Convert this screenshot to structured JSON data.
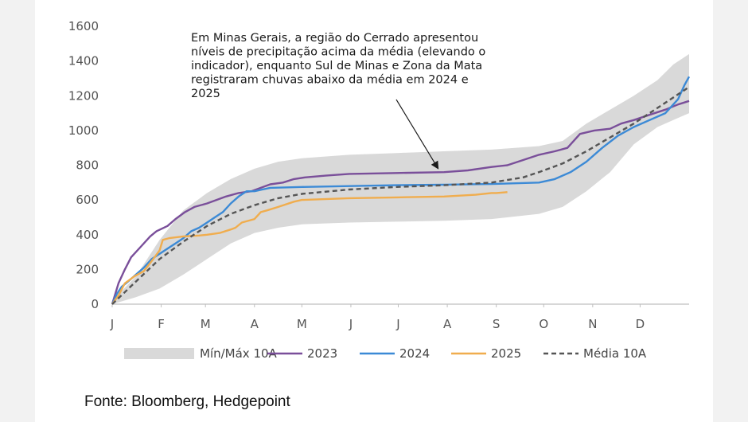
{
  "chart_data": {
    "type": "line",
    "title": "",
    "xlabel": "",
    "ylabel": "",
    "ylim": [
      0,
      1600
    ],
    "xlim": [
      0,
      365
    ],
    "y_ticks": [
      0,
      200,
      400,
      600,
      800,
      1000,
      1200,
      1400,
      1600
    ],
    "x_tick_labels": [
      "J",
      "F",
      "M",
      "A",
      "M",
      "J",
      "J",
      "A",
      "S",
      "O",
      "N",
      "D"
    ],
    "x_tick_days": [
      0,
      31,
      59,
      90,
      120,
      151,
      181,
      212,
      243,
      273,
      304,
      334
    ],
    "grid": false,
    "legend_position": "bottom",
    "band": {
      "name": "Mín/Máx 10A",
      "color": "#d9d9d9",
      "x": [
        0,
        15,
        30,
        45,
        60,
        75,
        90,
        105,
        120,
        150,
        180,
        210,
        240,
        270,
        285,
        300,
        315,
        330,
        345,
        355,
        365
      ],
      "min": [
        0,
        40,
        90,
        170,
        260,
        350,
        410,
        440,
        460,
        470,
        475,
        480,
        490,
        520,
        560,
        650,
        760,
        920,
        1020,
        1060,
        1100
      ],
      "max": [
        20,
        160,
        370,
        540,
        640,
        720,
        780,
        820,
        840,
        860,
        870,
        880,
        890,
        910,
        940,
        1040,
        1120,
        1200,
        1290,
        1380,
        1440
      ]
    },
    "series": [
      {
        "name": "2023",
        "color": "#7a4f9a",
        "dash": "",
        "x": [
          0,
          4,
          8,
          12,
          18,
          24,
          28,
          35,
          40,
          46,
          52,
          60,
          66,
          72,
          80,
          88,
          94,
          100,
          108,
          115,
          122,
          135,
          150,
          180,
          210,
          225,
          240,
          250,
          260,
          270,
          280,
          288,
          296,
          305,
          315,
          322,
          330,
          340,
          350,
          358,
          365
        ],
        "y": [
          0,
          120,
          200,
          270,
          330,
          390,
          420,
          450,
          490,
          530,
          560,
          580,
          600,
          620,
          640,
          650,
          670,
          690,
          700,
          720,
          730,
          740,
          750,
          755,
          760,
          770,
          790,
          800,
          830,
          860,
          880,
          900,
          980,
          1000,
          1010,
          1040,
          1060,
          1090,
          1120,
          1150,
          1170
        ]
      },
      {
        "name": "2024",
        "color": "#3c8ad6",
        "dash": "",
        "x": [
          0,
          3,
          6,
          10,
          15,
          20,
          25,
          30,
          35,
          40,
          45,
          50,
          55,
          60,
          65,
          70,
          75,
          80,
          85,
          90,
          95,
          100,
          120,
          150,
          180,
          210,
          240,
          270,
          280,
          290,
          300,
          310,
          320,
          330,
          340,
          350,
          358,
          362,
          365
        ],
        "y": [
          0,
          60,
          100,
          130,
          170,
          210,
          260,
          290,
          320,
          350,
          380,
          420,
          440,
          470,
          500,
          530,
          580,
          620,
          650,
          650,
          660,
          670,
          675,
          680,
          685,
          688,
          692,
          700,
          720,
          760,
          820,
          900,
          970,
          1020,
          1060,
          1100,
          1180,
          1260,
          1310
        ]
      },
      {
        "name": "2025",
        "color": "#f0ad4e",
        "dash": "",
        "x": [
          0,
          4,
          8,
          14,
          20,
          26,
          30,
          32,
          36,
          45,
          55,
          60,
          68,
          75,
          78,
          82,
          90,
          94,
          98,
          105,
          115,
          120,
          150,
          180,
          210,
          230,
          240,
          243,
          250
        ],
        "y": [
          0,
          50,
          120,
          160,
          190,
          260,
          310,
          370,
          380,
          390,
          395,
          400,
          410,
          430,
          440,
          470,
          490,
          530,
          540,
          560,
          590,
          600,
          610,
          615,
          620,
          630,
          640,
          640,
          645
        ]
      },
      {
        "name": "Média 10A",
        "color": "#555555",
        "dash": "6,4",
        "x": [
          0,
          15,
          30,
          45,
          60,
          75,
          90,
          105,
          120,
          150,
          180,
          210,
          240,
          260,
          270,
          285,
          300,
          315,
          330,
          345,
          365
        ],
        "y": [
          0,
          130,
          260,
          360,
          450,
          520,
          570,
          610,
          635,
          660,
          675,
          685,
          700,
          730,
          760,
          810,
          880,
          960,
          1040,
          1130,
          1250
        ]
      }
    ],
    "annotation": {
      "lines": [
        "Em Minas Gerais, a região do Cerrado apresentou",
        "níveis de precipitação acima da média (elevando o",
        "indicador), enquanto Sul de Minas e Zona da Mata",
        "registraram chuvas abaixo da média em 2024 e",
        "2025"
      ],
      "arrow_target": [
        206,
        770
      ]
    }
  },
  "source": "Fonte: Bloomberg, Hedgepoint"
}
